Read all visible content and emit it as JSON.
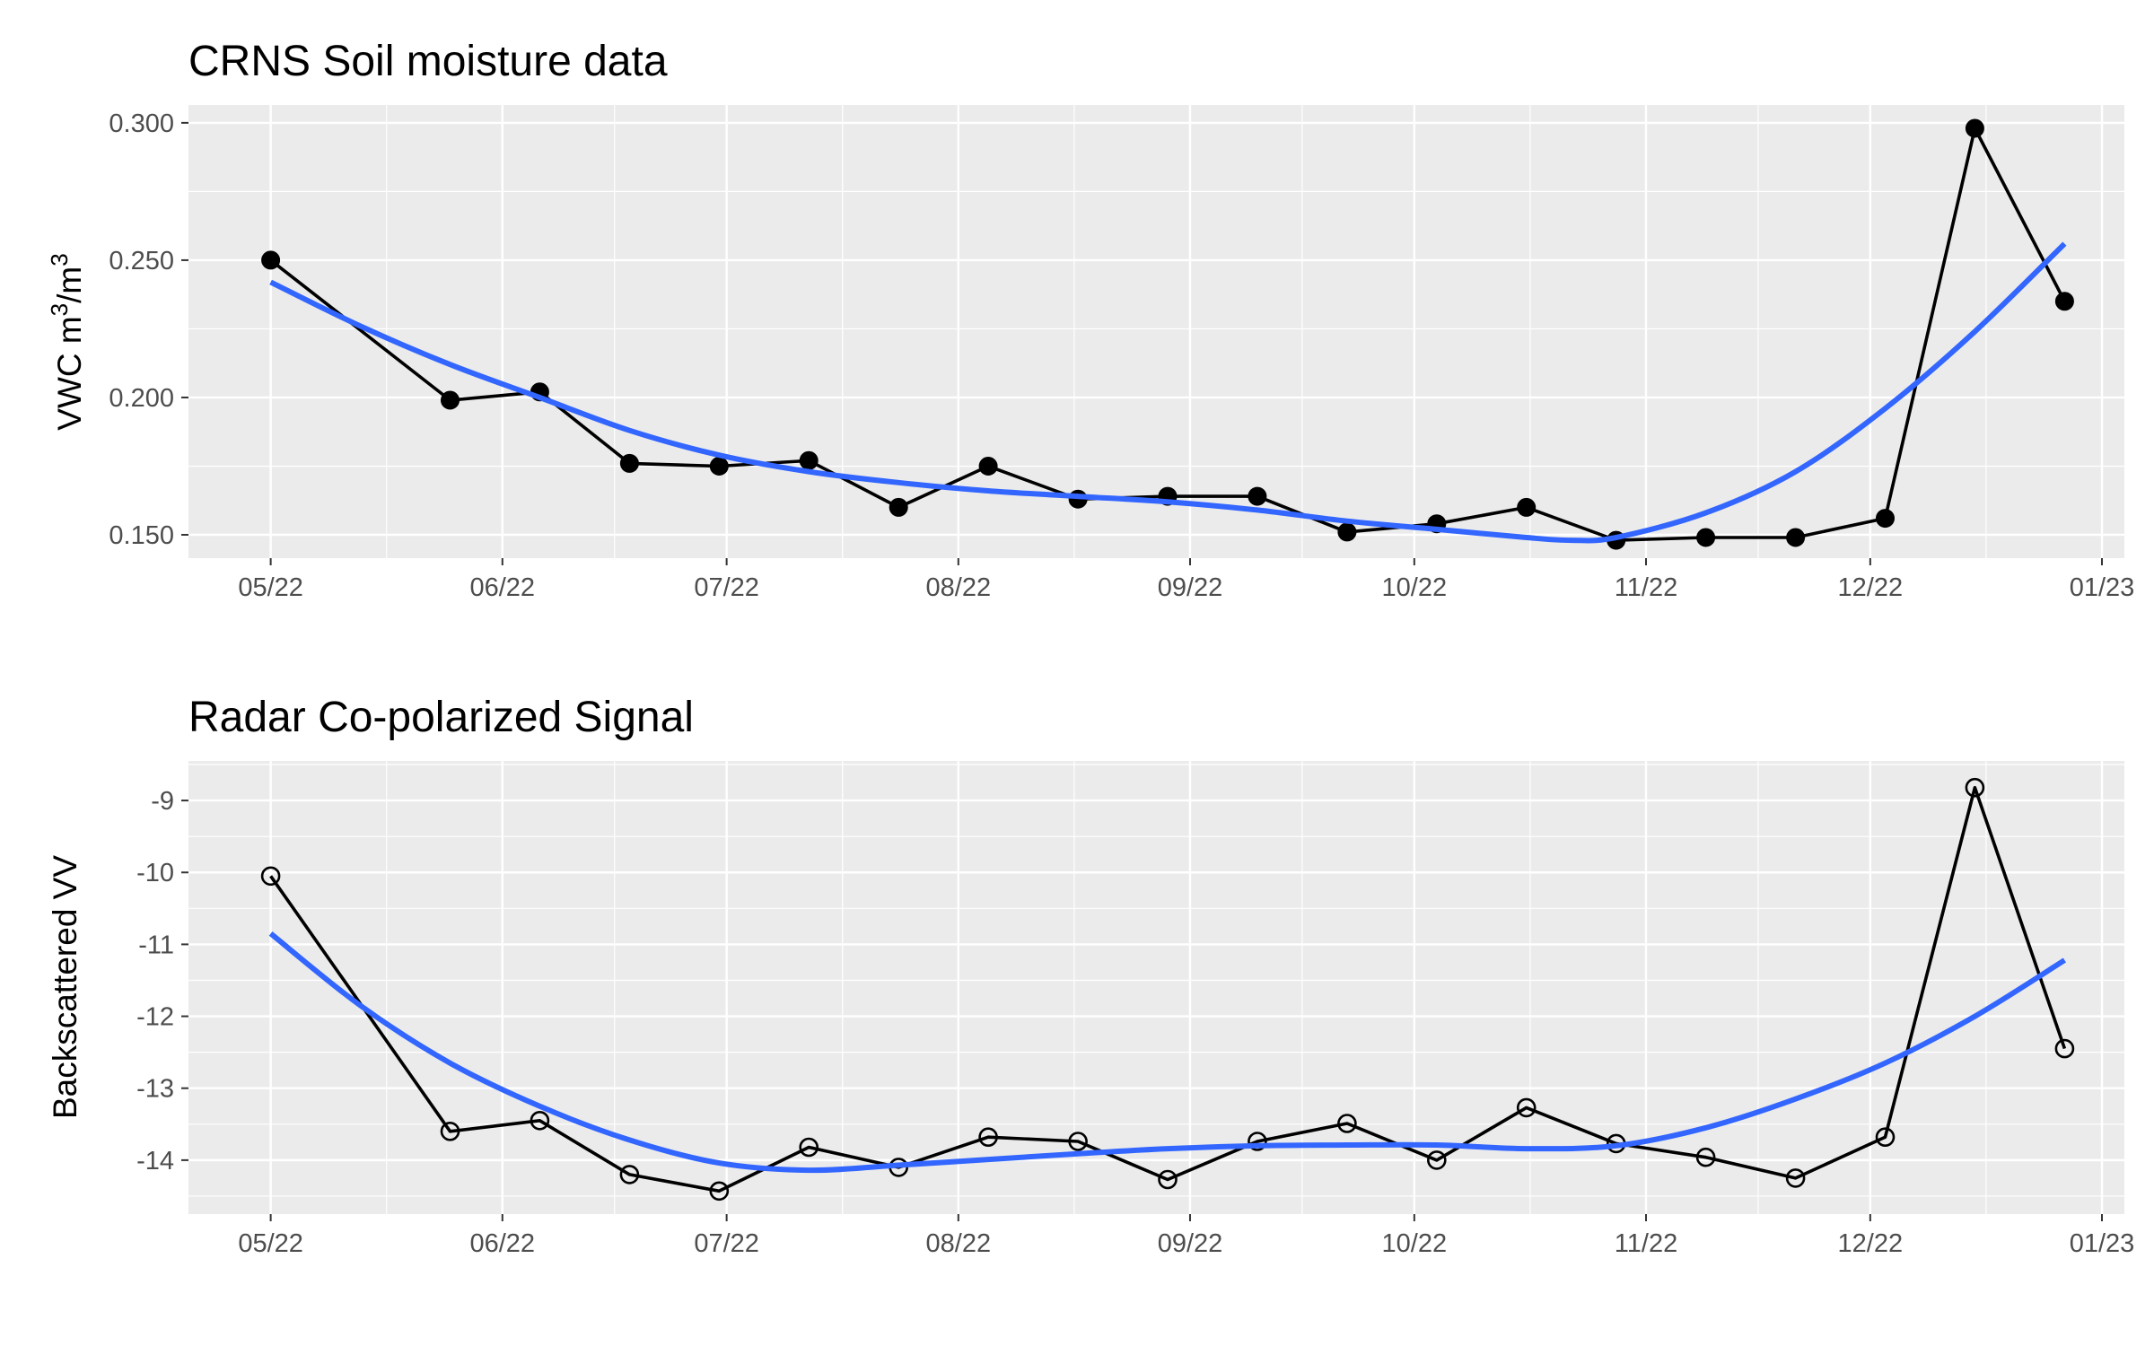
{
  "chart_data": [
    {
      "type": "line",
      "title": "CRNS Soil moisture data",
      "xlabel": "",
      "ylabel": "VWC m³/m³",
      "ylabel_parts": {
        "base": "VWC m",
        "sup1": "3",
        "mid": "/m",
        "sup2": "3"
      },
      "point_style": "filled-circle",
      "grid": true,
      "legend": "none",
      "xlim": [
        "2022-04-20",
        "2023-01-04"
      ],
      "ylim": [
        0.1415,
        0.3065
      ],
      "x_ticks": [
        {
          "date": "2022-05-01",
          "label": "05/22"
        },
        {
          "date": "2022-06-01",
          "label": "06/22"
        },
        {
          "date": "2022-07-01",
          "label": "07/22"
        },
        {
          "date": "2022-08-01",
          "label": "08/22"
        },
        {
          "date": "2022-09-01",
          "label": "09/22"
        },
        {
          "date": "2022-10-01",
          "label": "10/22"
        },
        {
          "date": "2022-11-01",
          "label": "11/22"
        },
        {
          "date": "2022-12-01",
          "label": "12/22"
        },
        {
          "date": "2023-01-01",
          "label": "01/23"
        }
      ],
      "y_ticks": [
        {
          "value": 0.15,
          "label": "0.150"
        },
        {
          "value": 0.2,
          "label": "0.200"
        },
        {
          "value": 0.25,
          "label": "0.250"
        },
        {
          "value": 0.3,
          "label": "0.300"
        }
      ],
      "series": [
        {
          "kind": "observed",
          "color": "#000000",
          "x": [
            "2022-05-01",
            "2022-05-25",
            "2022-06-06",
            "2022-06-18",
            "2022-06-30",
            "2022-07-12",
            "2022-07-24",
            "2022-08-05",
            "2022-08-17",
            "2022-08-29",
            "2022-09-10",
            "2022-09-22",
            "2022-10-04",
            "2022-10-16",
            "2022-10-28",
            "2022-11-09",
            "2022-11-21",
            "2022-12-03",
            "2022-12-15",
            "2022-12-27"
          ],
          "y": [
            0.25,
            0.199,
            0.202,
            0.176,
            0.175,
            0.177,
            0.16,
            0.175,
            0.163,
            0.164,
            0.164,
            0.151,
            0.154,
            0.16,
            0.148,
            0.149,
            0.149,
            0.156,
            0.298,
            0.235
          ]
        },
        {
          "kind": "smooth",
          "color": "#3366FF",
          "x": [
            "2022-05-01",
            "2022-05-13",
            "2022-05-25",
            "2022-06-06",
            "2022-06-18",
            "2022-06-30",
            "2022-07-12",
            "2022-07-24",
            "2022-08-05",
            "2022-08-17",
            "2022-08-29",
            "2022-09-10",
            "2022-09-22",
            "2022-10-04",
            "2022-10-16",
            "2022-10-22",
            "2022-10-28",
            "2022-11-09",
            "2022-11-21",
            "2022-12-03",
            "2022-12-15",
            "2022-12-27"
          ],
          "y": [
            0.242,
            0.226,
            0.212,
            0.2,
            0.188,
            0.179,
            0.173,
            0.169,
            0.166,
            0.164,
            0.162,
            0.159,
            0.155,
            0.152,
            0.149,
            0.148,
            0.149,
            0.158,
            0.173,
            0.196,
            0.224,
            0.256
          ]
        }
      ]
    },
    {
      "type": "line",
      "title": "Radar Co-polarized Signal",
      "xlabel": "",
      "ylabel": "Backscattered VV",
      "point_style": "open-circle",
      "grid": true,
      "legend": "none",
      "xlim": [
        "2022-04-20",
        "2023-01-04"
      ],
      "ylim": [
        -14.75,
        -8.45
      ],
      "x_ticks": [
        {
          "date": "2022-05-01",
          "label": "05/22"
        },
        {
          "date": "2022-06-01",
          "label": "06/22"
        },
        {
          "date": "2022-07-01",
          "label": "07/22"
        },
        {
          "date": "2022-08-01",
          "label": "08/22"
        },
        {
          "date": "2022-09-01",
          "label": "09/22"
        },
        {
          "date": "2022-10-01",
          "label": "10/22"
        },
        {
          "date": "2022-11-01",
          "label": "11/22"
        },
        {
          "date": "2022-12-01",
          "label": "12/22"
        },
        {
          "date": "2023-01-01",
          "label": "01/23"
        }
      ],
      "y_ticks": [
        {
          "value": -14,
          "label": "-14"
        },
        {
          "value": -13,
          "label": "-13"
        },
        {
          "value": -12,
          "label": "-12"
        },
        {
          "value": -11,
          "label": "-11"
        },
        {
          "value": -10,
          "label": "-10"
        },
        {
          "value": -9,
          "label": "-9"
        }
      ],
      "series": [
        {
          "kind": "observed",
          "color": "#000000",
          "x": [
            "2022-05-01",
            "2022-05-25",
            "2022-06-06",
            "2022-06-18",
            "2022-06-30",
            "2022-07-12",
            "2022-07-24",
            "2022-08-05",
            "2022-08-17",
            "2022-08-29",
            "2022-09-10",
            "2022-09-22",
            "2022-10-04",
            "2022-10-16",
            "2022-10-28",
            "2022-11-09",
            "2022-11-21",
            "2022-12-03",
            "2022-12-15",
            "2022-12-27"
          ],
          "y": [
            -10.05,
            -13.6,
            -13.45,
            -14.2,
            -14.43,
            -13.82,
            -14.1,
            -13.68,
            -13.74,
            -14.27,
            -13.74,
            -13.49,
            -14.0,
            -13.27,
            -13.77,
            -13.96,
            -14.25,
            -13.68,
            -8.82,
            -12.45
          ]
        },
        {
          "kind": "smooth",
          "color": "#3366FF",
          "x": [
            "2022-05-01",
            "2022-05-13",
            "2022-05-25",
            "2022-06-06",
            "2022-06-18",
            "2022-06-30",
            "2022-07-12",
            "2022-07-24",
            "2022-08-05",
            "2022-08-17",
            "2022-08-29",
            "2022-09-10",
            "2022-09-22",
            "2022-10-04",
            "2022-10-16",
            "2022-10-28",
            "2022-11-09",
            "2022-11-21",
            "2022-12-03",
            "2022-12-15",
            "2022-12-27"
          ],
          "y": [
            -10.85,
            -11.85,
            -12.65,
            -13.25,
            -13.72,
            -14.04,
            -14.14,
            -14.07,
            -13.99,
            -13.91,
            -13.84,
            -13.8,
            -13.79,
            -13.79,
            -13.84,
            -13.8,
            -13.55,
            -13.15,
            -12.65,
            -12.0,
            -11.22
          ]
        }
      ]
    }
  ]
}
